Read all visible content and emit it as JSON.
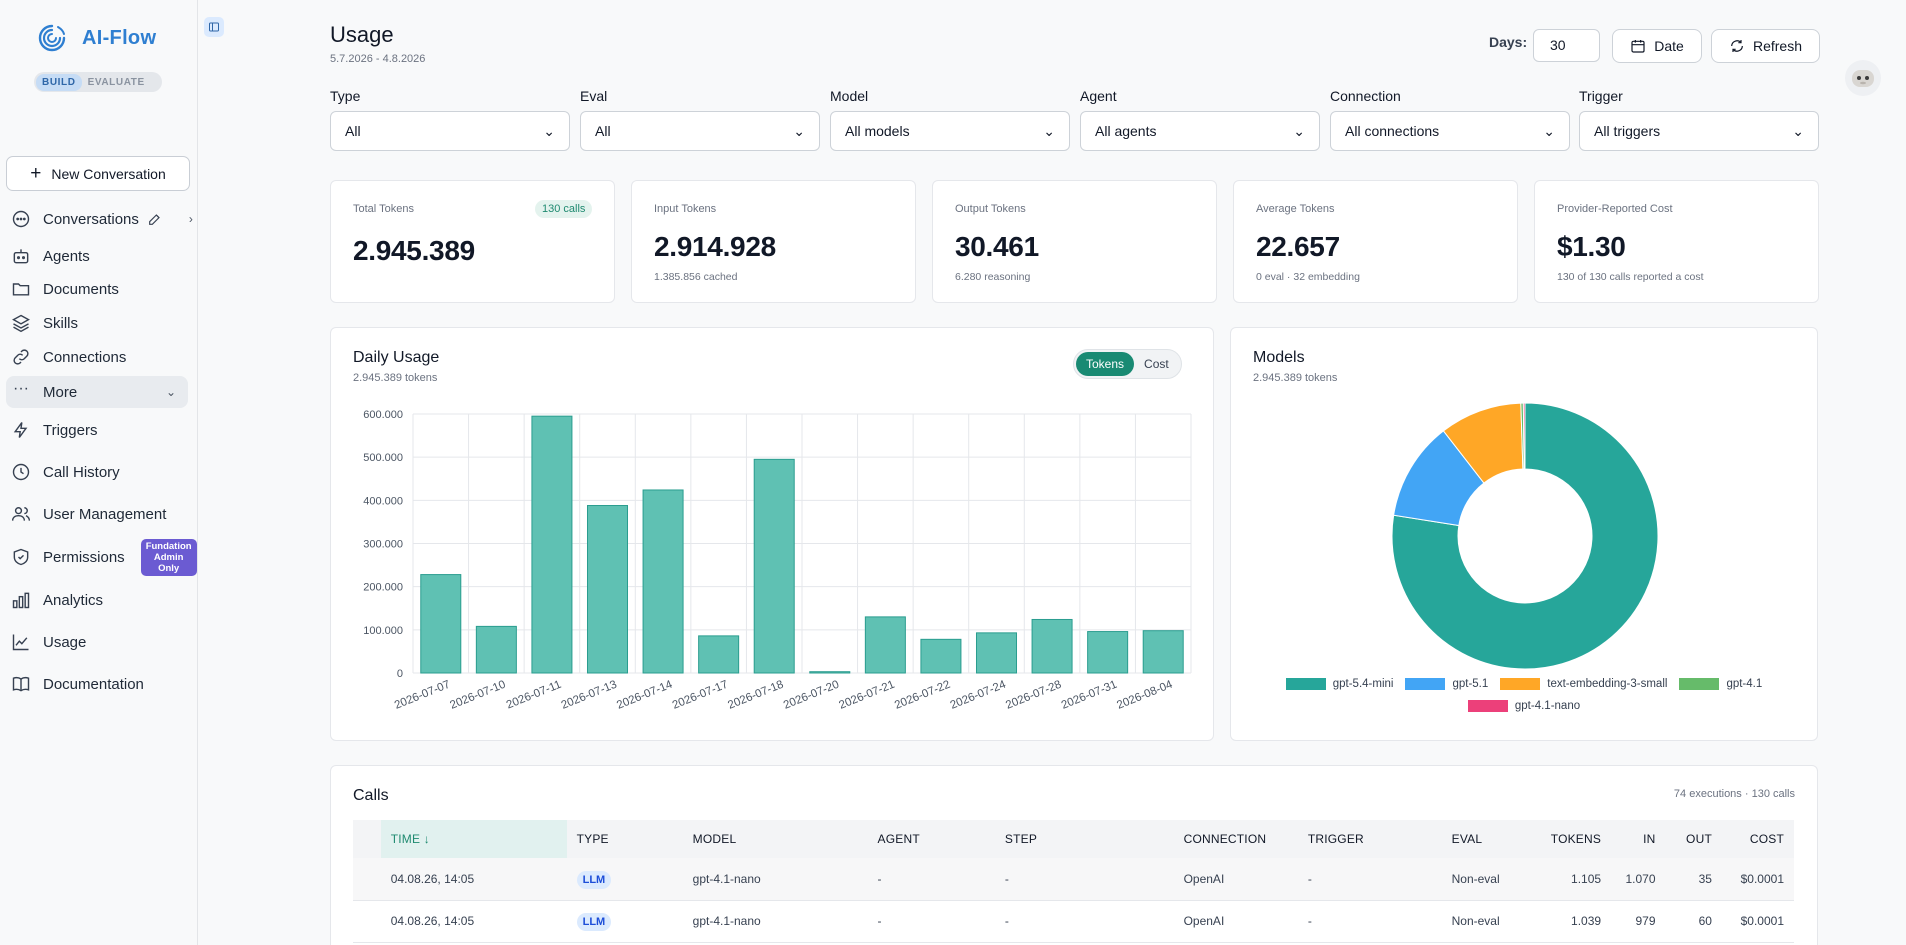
{
  "app": {
    "name": "AI-Flow",
    "modes": [
      "BUILD",
      "EVALUATE"
    ],
    "active_mode": "BUILD"
  },
  "sidebar": {
    "new_conversation": "New Conversation",
    "items": [
      {
        "label": "Conversations",
        "icon": "chat-icon"
      },
      {
        "label": "Agents",
        "icon": "bot-icon"
      },
      {
        "label": "Documents",
        "icon": "folder-icon"
      },
      {
        "label": "Skills",
        "icon": "layers-icon"
      },
      {
        "label": "Connections",
        "icon": "link-icon"
      },
      {
        "label": "More",
        "icon": "ellipsis-icon"
      },
      {
        "label": "Triggers",
        "icon": "bolt-icon"
      },
      {
        "label": "Call History",
        "icon": "clock-icon"
      },
      {
        "label": "User Management",
        "icon": "users-icon"
      },
      {
        "label": "Permissions",
        "icon": "shield-icon",
        "badge": "Fundation Admin Only"
      },
      {
        "label": "Analytics",
        "icon": "bar-chart-icon"
      },
      {
        "label": "Usage",
        "icon": "line-chart-icon"
      },
      {
        "label": "Documentation",
        "icon": "book-icon"
      }
    ]
  },
  "header": {
    "title": "Usage",
    "date_range": "5.7.2026 - 4.8.2026",
    "days_label": "Days:",
    "days_value": "30",
    "date_button": "Date",
    "refresh_button": "Refresh"
  },
  "filters": [
    {
      "label": "Type",
      "value": "All"
    },
    {
      "label": "Eval",
      "value": "All"
    },
    {
      "label": "Model",
      "value": "All models"
    },
    {
      "label": "Agent",
      "value": "All agents"
    },
    {
      "label": "Connection",
      "value": "All connections"
    },
    {
      "label": "Trigger",
      "value": "All triggers"
    }
  ],
  "stats": [
    {
      "label": "Total Tokens",
      "value": "2.945.389",
      "pill": "130 calls"
    },
    {
      "label": "Input Tokens",
      "value": "2.914.928",
      "sub": "1.385.856 cached"
    },
    {
      "label": "Output Tokens",
      "value": "30.461",
      "sub": "6.280 reasoning"
    },
    {
      "label": "Average Tokens",
      "value": "22.657",
      "sub": "0 eval · 32 embedding"
    },
    {
      "label": "Provider-Reported Cost",
      "value": "$1.30",
      "sub": "130 of 130 calls reported a cost"
    }
  ],
  "daily_usage": {
    "title": "Daily Usage",
    "subtitle": "2.945.389 tokens",
    "toggle": [
      "Tokens",
      "Cost"
    ],
    "toggle_active": "Tokens"
  },
  "models_panel": {
    "title": "Models",
    "subtitle": "2.945.389 tokens"
  },
  "chart_data": [
    {
      "type": "bar",
      "title": "Daily Usage",
      "categories": [
        "2026-07-07",
        "2026-07-10",
        "2026-07-11",
        "2026-07-13",
        "2026-07-14",
        "2026-07-17",
        "2026-07-18",
        "2026-07-20",
        "2026-07-21",
        "2026-07-22",
        "2026-07-24",
        "2026-07-28",
        "2026-07-31",
        "2026-08-04"
      ],
      "values": [
        228000,
        108000,
        595000,
        388000,
        424000,
        86000,
        495000,
        3000,
        130000,
        78000,
        93000,
        124000,
        96000,
        98000
      ],
      "ylim": [
        0,
        600000
      ],
      "yticks": [
        "0",
        "100.000",
        "200.000",
        "300.000",
        "400.000",
        "500.000",
        "600.000"
      ],
      "grid": true,
      "color": "#5fc1b3",
      "edge_color": "#2a9d8f"
    },
    {
      "type": "pie",
      "title": "Models",
      "donut": true,
      "labels": [
        "gpt-5.4-mini",
        "gpt-5.1",
        "text-embedding-3-small",
        "gpt-4.1",
        "gpt-4.1-nano"
      ],
      "values": [
        77.5,
        12,
        10,
        0.3,
        0.2
      ],
      "colors": [
        "#26a69a",
        "#42a5f5",
        "#ffa726",
        "#66bb6a",
        "#ec407a"
      ],
      "legend": "bottom"
    }
  ],
  "calls": {
    "title": "Calls",
    "count": "74 executions · 130 calls",
    "columns": [
      "TIME ↓",
      "TYPE",
      "MODEL",
      "AGENT",
      "STEP",
      "CONNECTION",
      "TRIGGER",
      "EVAL",
      "TOKENS",
      "IN",
      "OUT",
      "COST"
    ],
    "rows": [
      [
        "04.08.26, 14:05",
        "LLM",
        "gpt-4.1-nano",
        "-",
        "-",
        "OpenAI",
        "-",
        "Non-eval",
        "1.105",
        "1.070",
        "35",
        "$0.0001"
      ],
      [
        "04.08.26, 14:05",
        "LLM",
        "gpt-4.1-nano",
        "-",
        "-",
        "OpenAI",
        "-",
        "Non-eval",
        "1.039",
        "979",
        "60",
        "$0.0001"
      ]
    ]
  }
}
